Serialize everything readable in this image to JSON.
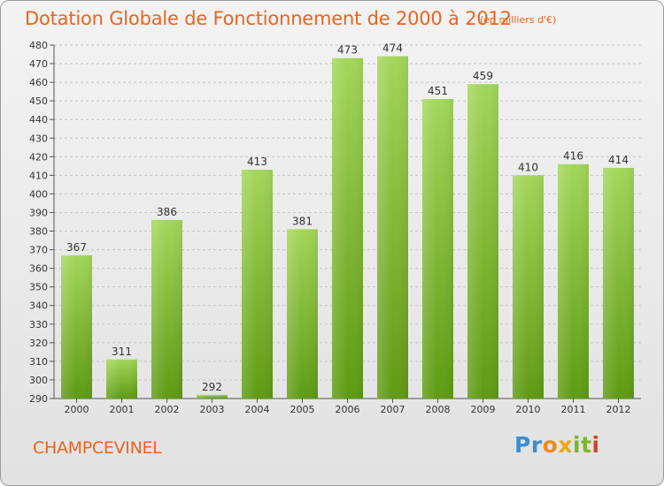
{
  "chart_data": {
    "type": "bar",
    "title": "Dotation Globale de Fonctionnement de 2000 à 2012",
    "subtitle": "(en milliers d'€)",
    "categories": [
      "2000",
      "2001",
      "2002",
      "2003",
      "2004",
      "2005",
      "2006",
      "2007",
      "2008",
      "2009",
      "2010",
      "2011",
      "2012"
    ],
    "values": [
      367,
      311,
      386,
      292,
      413,
      381,
      473,
      474,
      451,
      459,
      410,
      416,
      414
    ],
    "ylim": [
      290,
      480
    ],
    "yticks": [
      290,
      300,
      310,
      320,
      330,
      340,
      350,
      360,
      370,
      380,
      390,
      400,
      410,
      420,
      430,
      440,
      450,
      460,
      470,
      480
    ],
    "grid": "horizontal dashed",
    "bar_color_top": "#a3d65a",
    "bar_color_bottom": "#5e9a12"
  },
  "footer": {
    "commune": "CHAMPCEVINEL",
    "logo_letters": [
      "P",
      "r",
      "o",
      "x",
      "i",
      "t",
      "i"
    ],
    "logo_colors": [
      "#3b8ed0",
      "#3b8ed0",
      "#f08a1c",
      "#e8a817",
      "#7bb62a",
      "#7bb62a",
      "#d1452a"
    ]
  },
  "colors": {
    "accent": "#e8651e"
  }
}
